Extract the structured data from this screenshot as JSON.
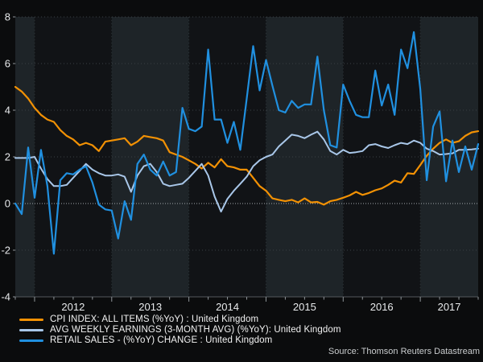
{
  "source_text": "Source: Thomson Reuters Datastream",
  "colors": {
    "page_background": "#0b0c0d",
    "band_light": "#1e2428",
    "band_dark": "#111316",
    "gridline": "#3a4045",
    "zero_line": "#a2a8ad",
    "year_line": "#2d3438",
    "axis_line": "#54595d",
    "tick": "#8f9499",
    "axis_text": "#e8eaec"
  },
  "chart_data": {
    "type": "line",
    "title": "",
    "xlabel": "",
    "ylabel": "",
    "ylim": [
      -4,
      8
    ],
    "y_ticks": [
      8,
      6,
      4,
      2,
      0,
      -2,
      -4
    ],
    "grid": "horizontal-dotted, vertical-dotted-at-year-starts, alternating-year-background-bands",
    "legend_position": "bottom-left",
    "x_unit": "monthly",
    "x_start": "2011-10",
    "x_end": "2017-10",
    "x_tick_labels": [
      "2012",
      "2013",
      "2014",
      "2015",
      "2016",
      "2017"
    ],
    "series": [
      {
        "name": "CPI INDEX: ALL ITEMS (%YoY) : United Kingdom",
        "color": "#f29104",
        "values": [
          5.0,
          4.8,
          4.5,
          4.1,
          3.8,
          3.6,
          3.5,
          3.15,
          2.9,
          2.75,
          2.5,
          2.6,
          2.5,
          2.25,
          2.65,
          2.7,
          2.75,
          2.8,
          2.5,
          2.65,
          2.9,
          2.85,
          2.8,
          2.7,
          2.2,
          2.1,
          2.0,
          1.85,
          1.7,
          1.5,
          1.75,
          1.55,
          1.9,
          1.6,
          1.55,
          1.45,
          1.45,
          1.1,
          0.75,
          0.55,
          0.22,
          0.16,
          0.1,
          0.16,
          0.05,
          0.22,
          0.05,
          0.07,
          -0.05,
          0.1,
          0.16,
          0.25,
          0.35,
          0.5,
          0.37,
          0.45,
          0.57,
          0.65,
          0.8,
          0.98,
          0.9,
          1.3,
          1.27,
          1.65,
          2.05,
          2.35,
          2.6,
          2.75,
          2.6,
          2.67,
          2.9,
          3.05,
          3.1
        ]
      },
      {
        "name": "AVG WEEKLY EARNINGS (3-MONTH AVG) (%YoY): United Kingdom",
        "color": "#a9c7e9",
        "values": [
          1.95,
          1.95,
          1.95,
          2.0,
          1.5,
          1.05,
          0.75,
          0.75,
          0.8,
          1.1,
          1.4,
          1.7,
          1.45,
          1.3,
          1.2,
          1.2,
          1.25,
          1.15,
          0.5,
          1.2,
          1.6,
          1.7,
          1.35,
          0.85,
          0.75,
          0.8,
          0.85,
          1.1,
          1.4,
          1.7,
          1.2,
          0.3,
          -0.35,
          0.2,
          0.55,
          0.85,
          1.15,
          1.6,
          1.85,
          2.0,
          2.1,
          2.45,
          2.7,
          2.95,
          2.9,
          2.8,
          2.95,
          3.08,
          2.75,
          2.25,
          2.1,
          2.3,
          2.17,
          2.2,
          2.25,
          2.5,
          2.55,
          2.45,
          2.38,
          2.5,
          2.6,
          2.55,
          2.7,
          2.6,
          2.35,
          2.25,
          2.1,
          2.12,
          2.15,
          2.3,
          2.3,
          2.32,
          2.35
        ]
      },
      {
        "name": "RETAIL SALES - (%YoY) CHANGE : United Kingdom",
        "color": "#2090e0",
        "values": [
          0.0,
          -0.45,
          2.4,
          0.25,
          2.3,
          0.75,
          -2.15,
          1.0,
          1.3,
          1.25,
          1.45,
          1.6,
          0.9,
          -0.05,
          -0.25,
          -0.3,
          -1.5,
          0.1,
          -0.7,
          1.7,
          2.1,
          1.45,
          1.2,
          1.8,
          1.2,
          1.35,
          4.1,
          3.2,
          3.1,
          3.3,
          6.6,
          3.6,
          3.6,
          2.6,
          3.5,
          2.3,
          4.5,
          6.75,
          4.85,
          6.15,
          5.05,
          4.0,
          3.9,
          4.4,
          4.1,
          4.25,
          4.25,
          6.3,
          4.0,
          2.5,
          2.4,
          5.1,
          4.4,
          3.8,
          3.7,
          3.7,
          5.7,
          4.2,
          5.1,
          3.8,
          6.6,
          5.8,
          7.35,
          4.9,
          1.0,
          3.3,
          3.95,
          0.95,
          2.7,
          1.35,
          2.45,
          1.45,
          2.55
        ]
      }
    ]
  }
}
